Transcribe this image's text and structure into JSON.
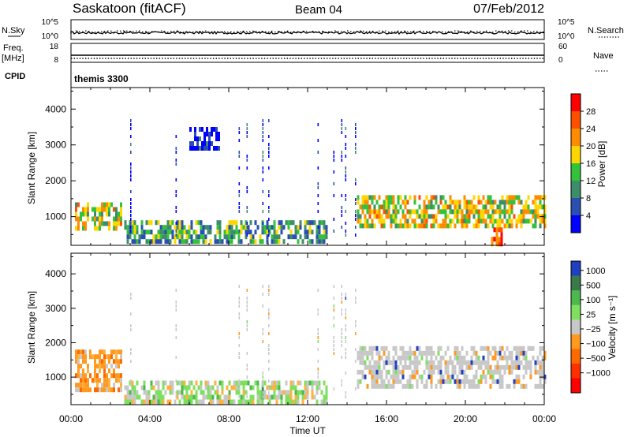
{
  "header": {
    "station": "Saskatoon (fitACF)",
    "beam": "Beam 04",
    "date": "07/Feb/2012"
  },
  "noise_panel": {
    "left_label": "N.Sky",
    "right_label": "N.Search",
    "left_ticks": [
      "10^5",
      "10^0"
    ],
    "right_ticks": [
      "10^5",
      "10^0"
    ]
  },
  "freq_panel": {
    "left_label_1": "Freq.",
    "left_label_2": "[MHz]",
    "right_label": "Nave",
    "left_ticks": [
      "18",
      "8"
    ],
    "right_ticks": [
      "60",
      "0"
    ]
  },
  "cpid_panel": {
    "label": "CPID",
    "mode": "themis 3300"
  },
  "chart_data": [
    {
      "type": "heatmap",
      "name": "power",
      "ylabel": "Slant Range [km]",
      "y_ticks": [
        "1000",
        "2000",
        "3000",
        "4000"
      ],
      "ylim": [
        200,
        4600
      ],
      "colorbar_label": "Power [dB]",
      "colorbar_ticks": [
        "4",
        "8",
        "12",
        "16",
        "20",
        "24",
        "28"
      ],
      "colorbar_colors": [
        "#0000ff",
        "#2a4fb0",
        "#3d8c6a",
        "#33c23a",
        "#ffd700",
        "#ff8c00",
        "#ff5000",
        "#ff0000"
      ],
      "features_utc_hours_km": [
        {
          "t": [
            0.2,
            2.6
          ],
          "r": [
            650,
            1400
          ],
          "level": "high"
        },
        {
          "t": [
            2.7,
            13.0
          ],
          "r": [
            250,
            900
          ],
          "level": "medium"
        },
        {
          "t": [
            14.5,
            24.0
          ],
          "r": [
            700,
            1600
          ],
          "level": "high"
        },
        {
          "t": [
            21.3,
            21.9
          ],
          "r": [
            300,
            700
          ],
          "level": "very high"
        },
        {
          "t": [
            6.0,
            7.5
          ],
          "r": [
            2900,
            3500
          ],
          "level": "low"
        }
      ]
    },
    {
      "type": "heatmap",
      "name": "velocity",
      "ylabel": "Slant Range [km]",
      "y_ticks": [
        "1000",
        "2000",
        "3000",
        "4000"
      ],
      "ylim": [
        200,
        4600
      ],
      "colorbar_label": "Velocity [m s⁻¹]",
      "colorbar_ticks": [
        "1000",
        "500",
        "100",
        "25",
        "−25",
        "−100",
        "−500",
        "−1000"
      ],
      "colorbar_colors": [
        "#2040c0",
        "#3a7a4a",
        "#4db84d",
        "#7fe060",
        "#c8c8c8",
        "#ff9a20",
        "#ff6a00",
        "#ff3000",
        "#ff0000"
      ],
      "features_utc_hours_km": [
        {
          "t": [
            0.2,
            2.6
          ],
          "r": [
            650,
            1800
          ],
          "class": "orange"
        },
        {
          "t": [
            2.7,
            13.0
          ],
          "r": [
            250,
            900
          ],
          "class": "green/grey"
        },
        {
          "t": [
            14.5,
            24.0
          ],
          "r": [
            700,
            1900
          ],
          "class": "grey"
        }
      ]
    }
  ],
  "x_axis": {
    "ticks": [
      "00:00",
      "04:00",
      "08:00",
      "12:00",
      "16:00",
      "20:00",
      "00:00"
    ],
    "label": "Time UT"
  }
}
